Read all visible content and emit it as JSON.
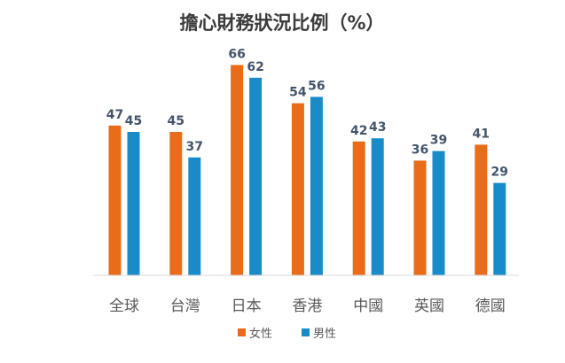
{
  "chart_data": {
    "type": "bar",
    "title": "擔心財務狀況比例（%）",
    "xlabel": "",
    "ylabel": "",
    "categories": [
      "全球",
      "台灣",
      "日本",
      "香港",
      "中國",
      "英國",
      "德國"
    ],
    "series": [
      {
        "name": "女性",
        "color": "#e96c1a",
        "values": [
          47,
          45,
          66,
          54,
          42,
          36,
          41
        ]
      },
      {
        "name": "男性",
        "color": "#1a8bc9",
        "values": [
          45,
          37,
          62,
          56,
          43,
          39,
          29
        ]
      }
    ],
    "ylim": [
      0,
      70
    ],
    "grid": false,
    "legend": "bottom",
    "data_labels": true
  }
}
